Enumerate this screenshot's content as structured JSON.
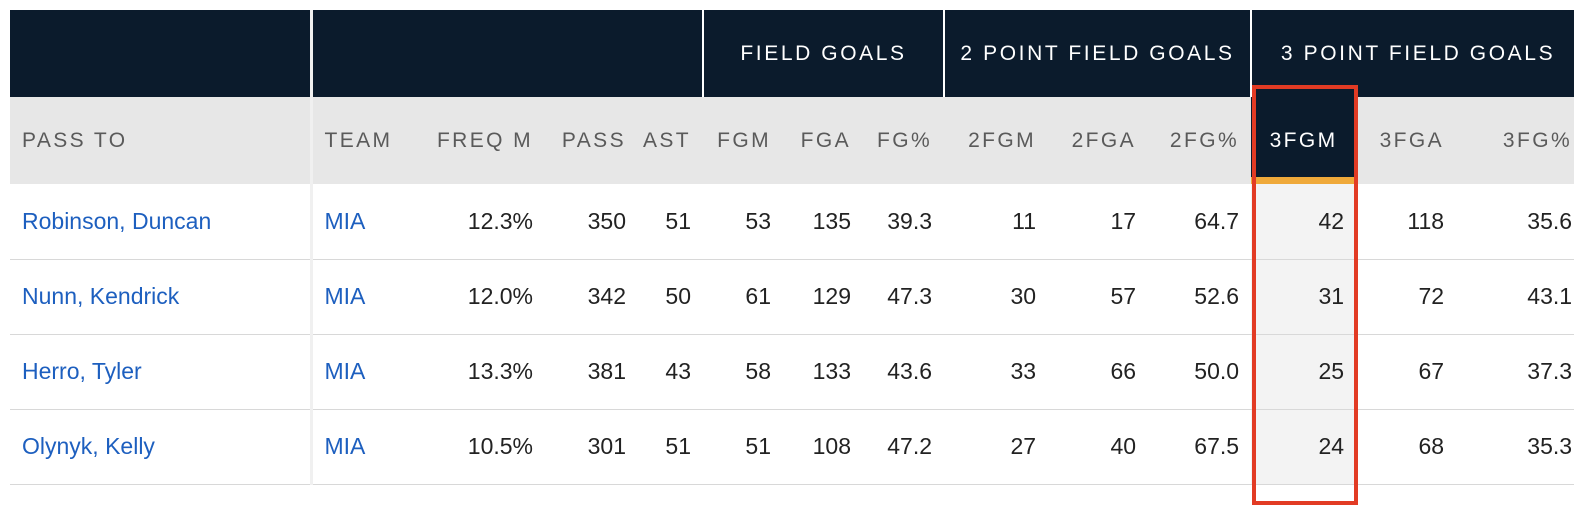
{
  "table": {
    "group_headers": {
      "field_goals": "FIELD GOALS",
      "two_point": "2 POINT FIELD GOALS",
      "three_point": "3 POINT FIELD GOALS"
    },
    "columns": {
      "pass_to": "PASS TO",
      "team": "TEAM",
      "freq": "FREQ M",
      "pass": "PASS",
      "ast": "AST",
      "fgm": "FGM",
      "fga": "FGA",
      "fgp": "FG%",
      "fg2m": "2FGM",
      "fg2a": "2FGA",
      "fg2p": "2FG%",
      "fg3m": "3FGM",
      "fg3a": "3FGA",
      "fg3p": "3FG%"
    },
    "rows": [
      {
        "player": "Robinson, Duncan",
        "team": "MIA",
        "freq": "12.3%",
        "pass": "350",
        "ast": "51",
        "fgm": "53",
        "fga": "135",
        "fgp": "39.3",
        "fg2m": "11",
        "fg2a": "17",
        "fg2p": "64.7",
        "fg3m": "42",
        "fg3a": "118",
        "fg3p": "35.6"
      },
      {
        "player": "Nunn, Kendrick",
        "team": "MIA",
        "freq": "12.0%",
        "pass": "342",
        "ast": "50",
        "fgm": "61",
        "fga": "129",
        "fgp": "47.3",
        "fg2m": "30",
        "fg2a": "57",
        "fg2p": "52.6",
        "fg3m": "31",
        "fg3a": "72",
        "fg3p": "43.1"
      },
      {
        "player": "Herro, Tyler",
        "team": "MIA",
        "freq": "13.3%",
        "pass": "381",
        "ast": "43",
        "fgm": "58",
        "fga": "133",
        "fgp": "43.6",
        "fg2m": "33",
        "fg2a": "66",
        "fg2p": "50.0",
        "fg3m": "25",
        "fg3a": "67",
        "fg3p": "37.3"
      },
      {
        "player": "Olynyk, Kelly",
        "team": "MIA",
        "freq": "10.5%",
        "pass": "301",
        "ast": "51",
        "fgm": "51",
        "fga": "108",
        "fgp": "47.2",
        "fg2m": "27",
        "fg2a": "40",
        "fg2p": "67.5",
        "fg3m": "24",
        "fg3a": "68",
        "fg3p": "35.3"
      }
    ],
    "highlighted_column": "3FGM",
    "colors": {
      "header_dark": "#0b1b2c",
      "link_blue": "#1d5fbf",
      "sort_indicator": "#efa93a",
      "annotation_red": "#e23b24"
    }
  }
}
